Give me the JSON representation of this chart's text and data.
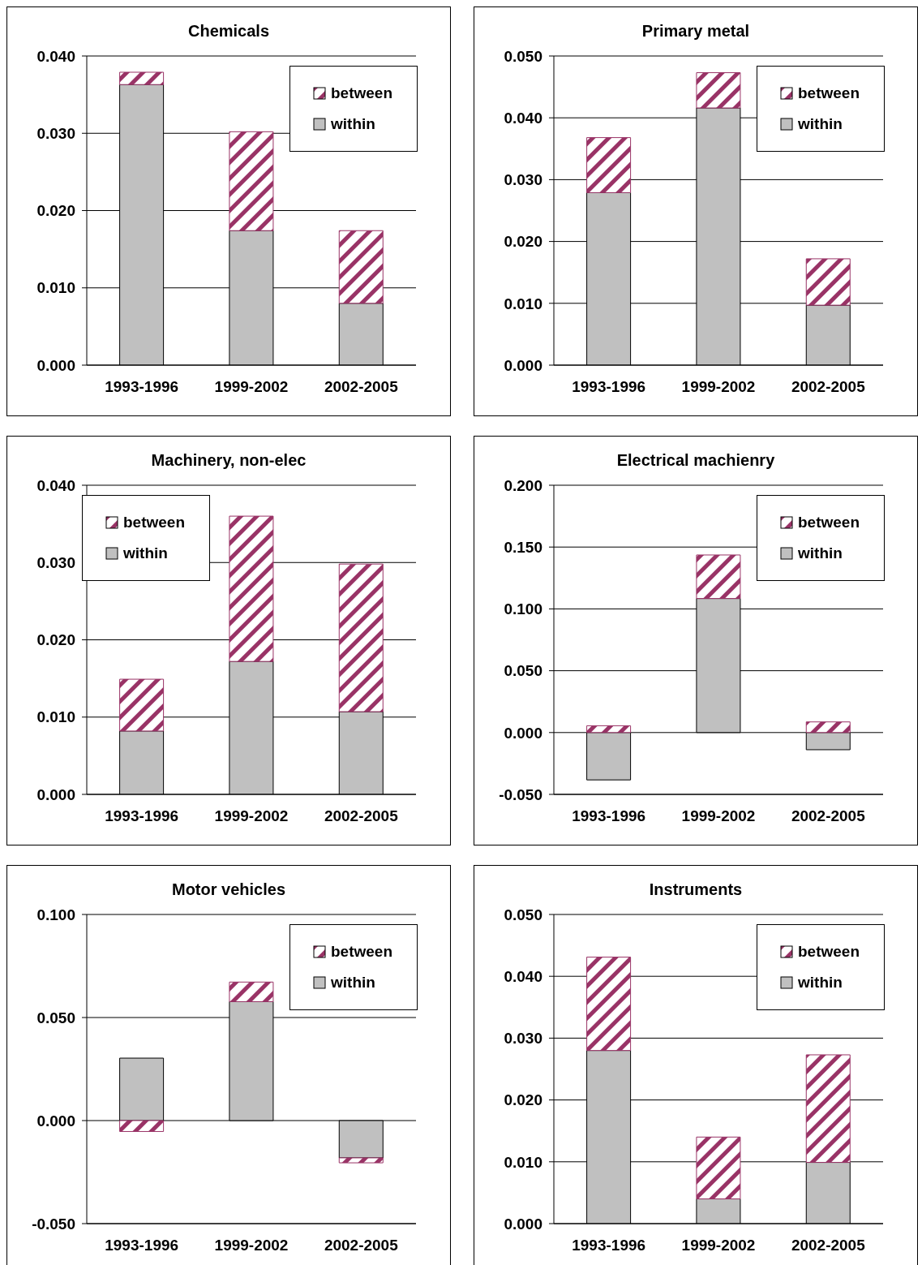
{
  "chart_data": [
    {
      "type": "bar",
      "title": "Chemicals",
      "categories": [
        "1993-1996",
        "1999-2002",
        "2002-2005"
      ],
      "stacked": true,
      "grid": "y",
      "legend": "top right",
      "series": [
        {
          "name": "within",
          "color": "#c0c0c0",
          "values": [
            0.0363,
            0.0174,
            0.008
          ]
        },
        {
          "name": "between",
          "color": "#993366",
          "values": [
            0.0016,
            0.0128,
            0.0094
          ]
        }
      ],
      "ylim": [
        0,
        0.04
      ],
      "yticks": [
        {
          "value": 0,
          "label": "0.000"
        },
        {
          "value": 0.01,
          "label": "0.010"
        },
        {
          "value": 0.02,
          "label": "0.020"
        },
        {
          "value": 0.03,
          "label": "0.030"
        },
        {
          "value": 0.04,
          "label": "0.040"
        }
      ]
    },
    {
      "type": "bar",
      "title": "Primary metal",
      "categories": [
        "1993-1996",
        "1999-2002",
        "2002-2005"
      ],
      "stacked": true,
      "grid": "y",
      "legend": "top right",
      "series": [
        {
          "name": "within",
          "color": "#c0c0c0",
          "values": [
            0.0279,
            0.0416,
            0.0097
          ]
        },
        {
          "name": "between",
          "color": "#993366",
          "values": [
            0.0089,
            0.0057,
            0.0075
          ]
        }
      ],
      "ylim": [
        0,
        0.05
      ],
      "yticks": [
        {
          "value": 0,
          "label": "0.000"
        },
        {
          "value": 0.01,
          "label": "0.010"
        },
        {
          "value": 0.02,
          "label": "0.020"
        },
        {
          "value": 0.03,
          "label": "0.030"
        },
        {
          "value": 0.04,
          "label": "0.040"
        },
        {
          "value": 0.05,
          "label": "0.050"
        }
      ]
    },
    {
      "type": "bar",
      "title": "Machinery, non-elec",
      "categories": [
        "1993-1996",
        "1999-2002",
        "2002-2005"
      ],
      "stacked": true,
      "grid": "y",
      "legend": "top left",
      "series": [
        {
          "name": "within",
          "color": "#c0c0c0",
          "values": [
            0.0082,
            0.0172,
            0.0107
          ]
        },
        {
          "name": "between",
          "color": "#993366",
          "values": [
            0.0067,
            0.0188,
            0.0191
          ]
        }
      ],
      "ylim": [
        0,
        0.04
      ],
      "yticks": [
        {
          "value": 0,
          "label": "0.000"
        },
        {
          "value": 0.01,
          "label": "0.010"
        },
        {
          "value": 0.02,
          "label": "0.020"
        },
        {
          "value": 0.03,
          "label": "0.030"
        },
        {
          "value": 0.04,
          "label": "0.040"
        }
      ]
    },
    {
      "type": "bar",
      "title": "Electrical machienry",
      "categories": [
        "1993-1996",
        "1999-2002",
        "2002-2005"
      ],
      "stacked": true,
      "grid": "y",
      "legend": "top right",
      "series": [
        {
          "name": "within",
          "color": "#c0c0c0",
          "values": [
            -0.0383,
            0.1084,
            -0.0139
          ]
        },
        {
          "name": "between",
          "color": "#993366",
          "values": [
            0.0055,
            0.0352,
            0.0086
          ]
        }
      ],
      "ylim": [
        -0.05,
        0.2
      ],
      "yticks": [
        {
          "value": -0.05,
          "label": "-0.050"
        },
        {
          "value": 0,
          "label": "0.000"
        },
        {
          "value": 0.05,
          "label": "0.050"
        },
        {
          "value": 0.1,
          "label": "0.100"
        },
        {
          "value": 0.15,
          "label": "0.150"
        },
        {
          "value": 0.2,
          "label": "0.200"
        }
      ]
    },
    {
      "type": "bar",
      "title": "Motor vehicles",
      "categories": [
        "1993-1996",
        "1999-2002",
        "2002-2005"
      ],
      "stacked": true,
      "grid": "y",
      "legend": "top right",
      "series": [
        {
          "name": "within",
          "color": "#c0c0c0",
          "values": [
            0.0303,
            0.0577,
            -0.0181
          ]
        },
        {
          "name": "between",
          "color": "#993366",
          "values": [
            -0.0053,
            0.0095,
            -0.0024
          ]
        }
      ],
      "ylim": [
        -0.05,
        0.1
      ],
      "yticks": [
        {
          "value": -0.05,
          "label": "-0.050"
        },
        {
          "value": 0,
          "label": "0.000"
        },
        {
          "value": 0.05,
          "label": "0.050"
        },
        {
          "value": 0.1,
          "label": "0.100"
        }
      ]
    },
    {
      "type": "bar",
      "title": "Instruments",
      "categories": [
        "1993-1996",
        "1999-2002",
        "2002-2005"
      ],
      "stacked": true,
      "grid": "y",
      "legend": "top right",
      "series": [
        {
          "name": "within",
          "color": "#c0c0c0",
          "values": [
            0.028,
            0.004,
            0.0099
          ]
        },
        {
          "name": "between",
          "color": "#993366",
          "values": [
            0.0151,
            0.01,
            0.0174
          ]
        }
      ],
      "ylim": [
        0,
        0.05
      ],
      "yticks": [
        {
          "value": 0,
          "label": "0.000"
        },
        {
          "value": 0.01,
          "label": "0.010"
        },
        {
          "value": 0.02,
          "label": "0.020"
        },
        {
          "value": 0.03,
          "label": "0.030"
        },
        {
          "value": 0.04,
          "label": "0.040"
        },
        {
          "value": 0.05,
          "label": "0.050"
        }
      ]
    }
  ]
}
